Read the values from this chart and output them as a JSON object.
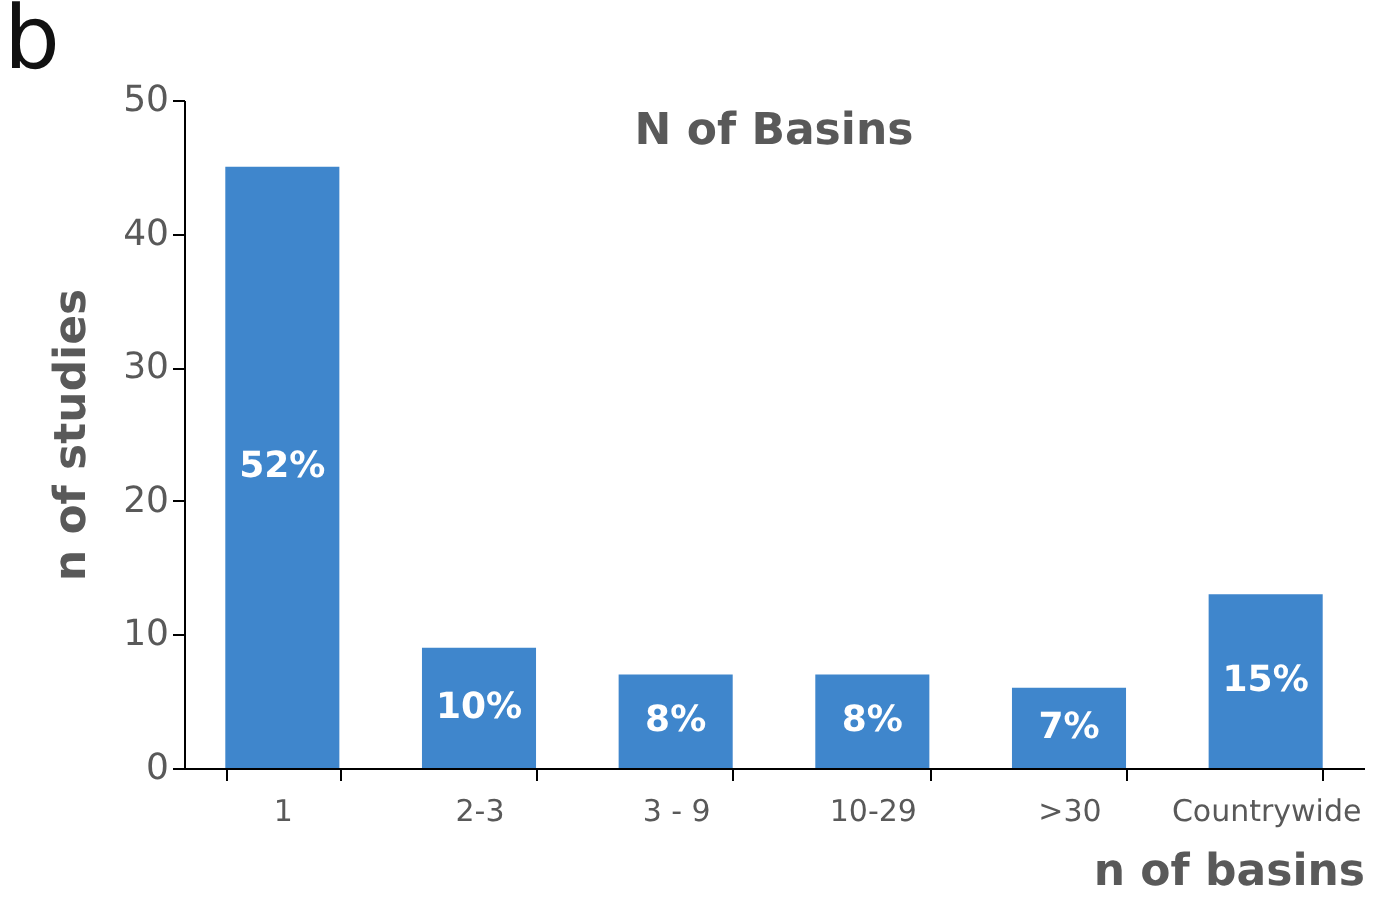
{
  "chart_data": {
    "type": "bar",
    "title": "N of Basins",
    "xlabel": "n of basins",
    "ylabel": "n of studies",
    "categories": [
      "1",
      "2-3",
      "3 - 9",
      "10-29",
      ">30",
      "Countrywide"
    ],
    "values": [
      45,
      9,
      7,
      7,
      6,
      13
    ],
    "color": "#3f86cc",
    "ylim": [
      0,
      50
    ],
    "yticks": [
      0,
      10,
      20,
      30,
      40,
      50
    ],
    "grid": false,
    "annotations": [
      "b",
      "52%",
      {
        "text": "10%",
        "x": "2-3",
        "y": 9
      },
      {
        "text": "8%",
        "x": "3 - 9",
        "y": 7
      },
      {
        "text": "8%",
        "x": "10-29",
        "y": 7
      },
      {
        "text": "7%",
        "x": ">30",
        "y": 6
      },
      {
        "text": "15%",
        "x": "Countrywide",
        "y": 13
      }
    ]
  }
}
